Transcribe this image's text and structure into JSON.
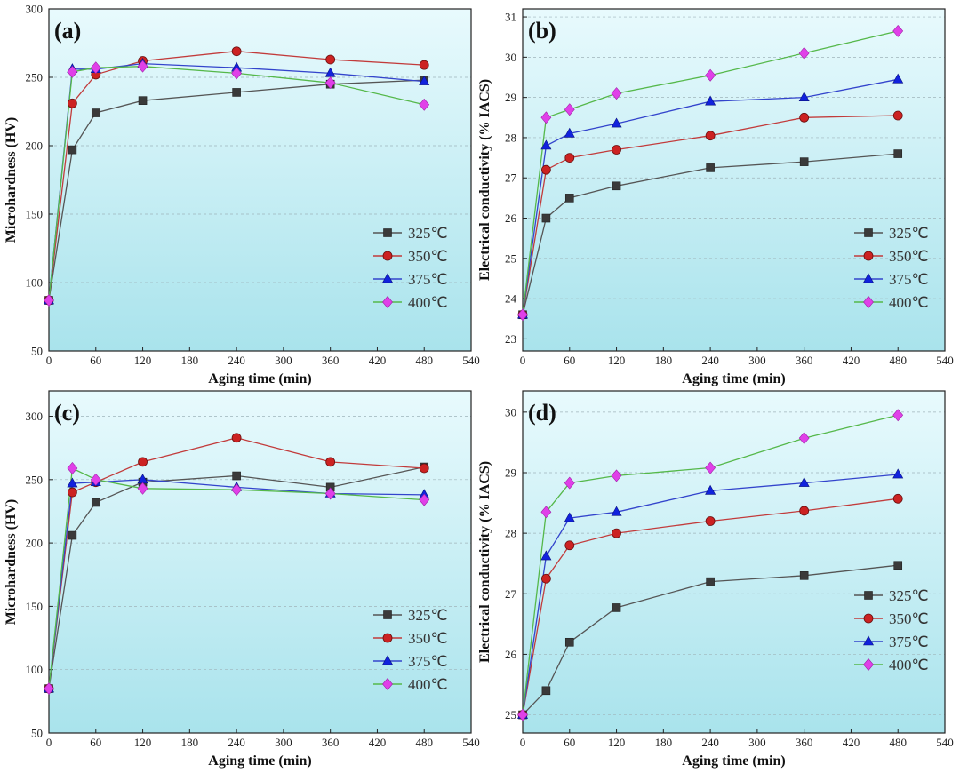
{
  "chart_data": [
    {
      "type": "line",
      "panel": "(a)",
      "xlabel": "Aging time (min)",
      "ylabel": "Microhardness (HV)",
      "xlim": [
        0,
        540
      ],
      "ylim": [
        50,
        300
      ],
      "xticks": [
        "0",
        "60",
        "120",
        "180",
        "240",
        "300",
        "360",
        "420",
        "480",
        "540"
      ],
      "yticks": [
        "50",
        "100",
        "150",
        "200",
        "250",
        "300"
      ],
      "x": [
        0,
        30,
        60,
        120,
        240,
        360,
        480
      ],
      "series": [
        {
          "name": "325℃",
          "values": [
            87,
            197,
            224,
            233,
            239,
            245,
            248
          ]
        },
        {
          "name": "350℃",
          "values": [
            87,
            231,
            252,
            262,
            269,
            263,
            259
          ]
        },
        {
          "name": "375℃",
          "values": [
            87,
            256,
            256,
            260,
            257,
            253,
            247
          ]
        },
        {
          "name": "400℃",
          "values": [
            87,
            254,
            257,
            258,
            253,
            246,
            230
          ]
        }
      ]
    },
    {
      "type": "line",
      "panel": "(b)",
      "xlabel": "Aging time (min)",
      "ylabel": "Electrical conductivity (% IACS)",
      "xlim": [
        0,
        540
      ],
      "ylim": [
        22.7,
        31.2
      ],
      "xticks": [
        "0",
        "60",
        "120",
        "180",
        "240",
        "300",
        "360",
        "420",
        "480",
        "540"
      ],
      "yticks": [
        "23",
        "24",
        "25",
        "26",
        "27",
        "28",
        "29",
        "30",
        "31"
      ],
      "x": [
        0,
        30,
        60,
        120,
        240,
        360,
        480
      ],
      "series": [
        {
          "name": "325℃",
          "values": [
            23.6,
            26.0,
            26.5,
            26.8,
            27.25,
            27.4,
            27.6
          ]
        },
        {
          "name": "350℃",
          "values": [
            23.6,
            27.2,
            27.5,
            27.7,
            28.05,
            28.5,
            28.55
          ]
        },
        {
          "name": "375℃",
          "values": [
            23.6,
            27.8,
            28.1,
            28.35,
            28.9,
            29.0,
            29.45
          ]
        },
        {
          "name": "400℃",
          "values": [
            23.6,
            28.5,
            28.7,
            29.1,
            29.55,
            30.1,
            30.65
          ]
        }
      ]
    },
    {
      "type": "line",
      "panel": "(c)",
      "xlabel": "Aging time (min)",
      "ylabel": "Microhardness (HV)",
      "xlim": [
        0,
        540
      ],
      "ylim": [
        50,
        320
      ],
      "xticks": [
        "0",
        "60",
        "120",
        "180",
        "240",
        "300",
        "360",
        "420",
        "480",
        "540"
      ],
      "yticks": [
        "50",
        "100",
        "150",
        "200",
        "250",
        "300"
      ],
      "x": [
        0,
        30,
        60,
        120,
        240,
        360,
        480
      ],
      "series": [
        {
          "name": "325℃",
          "values": [
            85,
            206,
            232,
            248,
            253,
            244,
            260
          ]
        },
        {
          "name": "350℃",
          "values": [
            85,
            240,
            248,
            264,
            283,
            264,
            259
          ]
        },
        {
          "name": "375℃",
          "values": [
            85,
            247,
            248,
            250,
            244,
            239,
            238
          ]
        },
        {
          "name": "400℃",
          "values": [
            85,
            259,
            250,
            243,
            242,
            239,
            234
          ]
        }
      ]
    },
    {
      "type": "line",
      "panel": "(d)",
      "xlabel": "Aging time (min)",
      "ylabel": "Electrical conductivity (% IACS)",
      "xlim": [
        0,
        540
      ],
      "ylim": [
        24.7,
        30.35
      ],
      "xticks": [
        "0",
        "60",
        "120",
        "180",
        "240",
        "300",
        "360",
        "420",
        "480",
        "540"
      ],
      "yticks": [
        "25",
        "26",
        "27",
        "28",
        "29",
        "30"
      ],
      "x": [
        0,
        30,
        60,
        120,
        240,
        360,
        480
      ],
      "series": [
        {
          "name": "325℃",
          "values": [
            25.0,
            25.4,
            26.2,
            26.77,
            27.2,
            27.3,
            27.47
          ]
        },
        {
          "name": "350℃",
          "values": [
            25.0,
            27.25,
            27.8,
            28.0,
            28.2,
            28.37,
            28.57
          ]
        },
        {
          "name": "375℃",
          "values": [
            25.0,
            27.62,
            28.25,
            28.35,
            28.7,
            28.83,
            28.97
          ]
        },
        {
          "name": "400℃",
          "values": [
            25.0,
            28.35,
            28.83,
            28.95,
            29.08,
            29.57,
            29.95
          ]
        }
      ]
    }
  ],
  "series_styles": [
    {
      "line": "#555555",
      "fill": "#3a3a3a",
      "marker": "square"
    },
    {
      "line": "#c23b3b",
      "fill": "#cc2222",
      "marker": "circle"
    },
    {
      "line": "#3344cc",
      "fill": "#1122dd",
      "marker": "triangle"
    },
    {
      "line": "#55b84a",
      "fill": "#e040e8",
      "marker": "diamond"
    }
  ],
  "background": {
    "top": "#e8fafd",
    "bottom": "#a9e3ec"
  }
}
